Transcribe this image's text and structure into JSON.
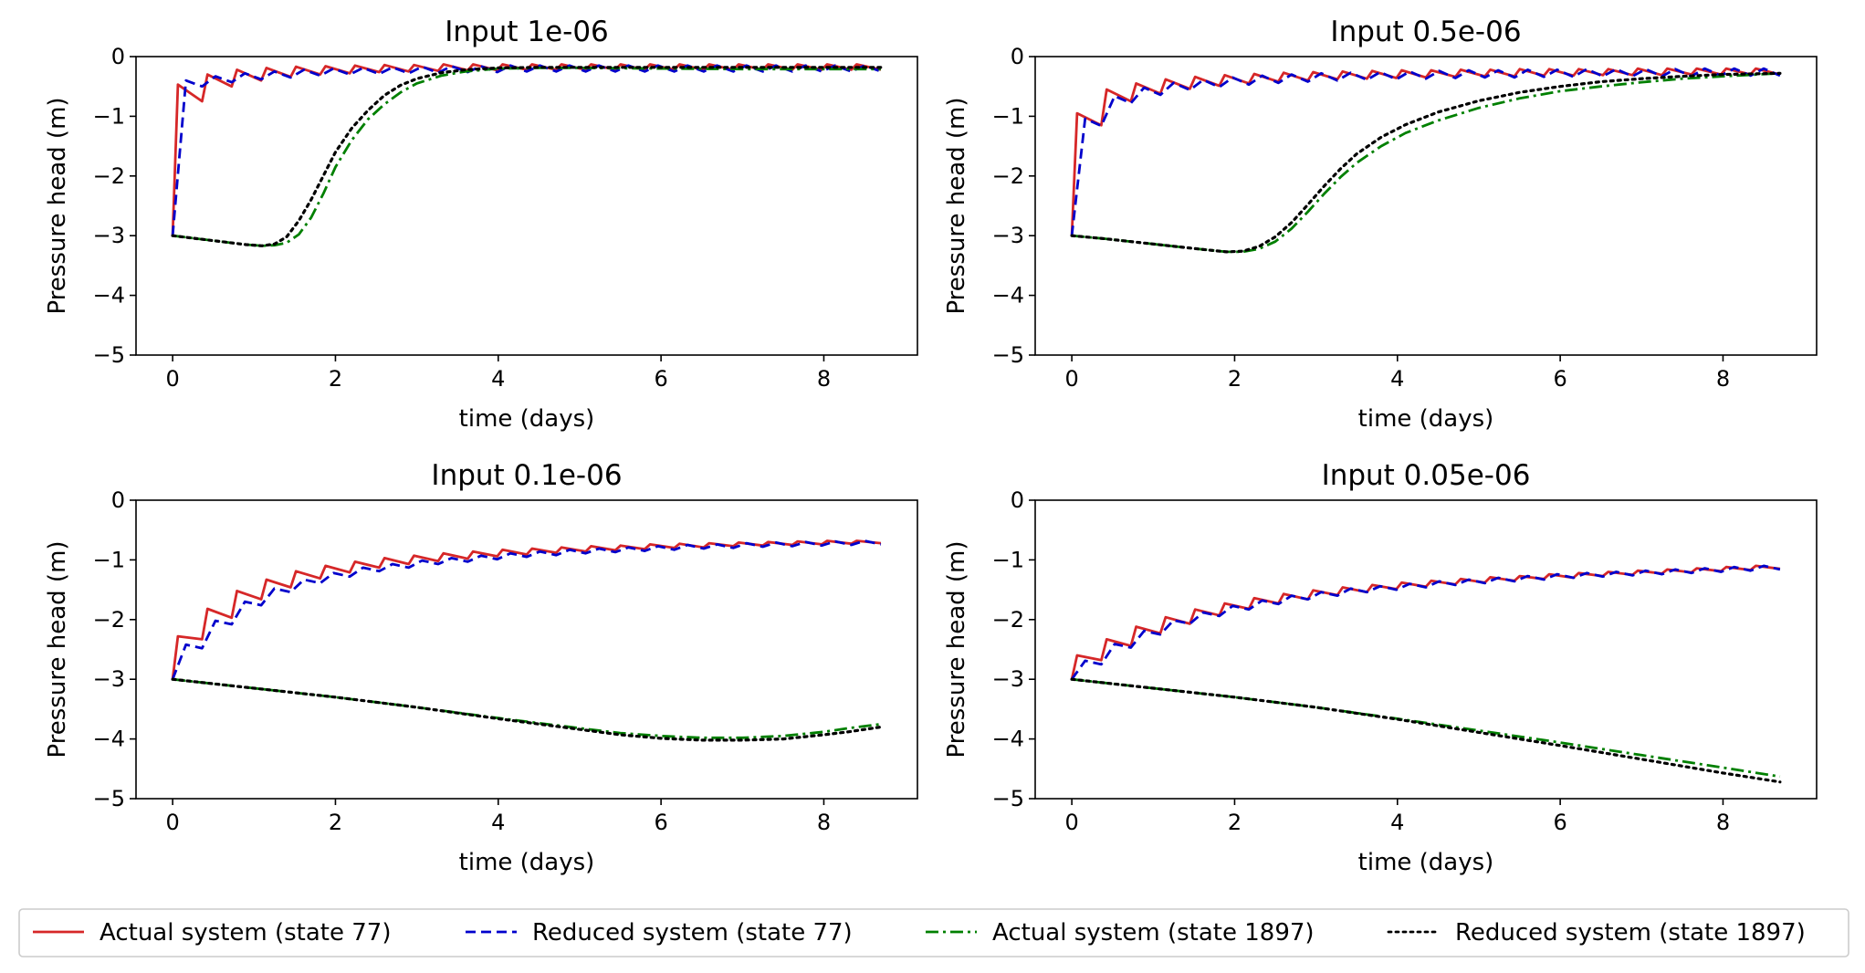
{
  "chart_data": {
    "type": "line",
    "xlabel": "time (days)",
    "ylabel": "Pressure head (m)",
    "xlim": [
      -0.45,
      9.15
    ],
    "ylim": [
      -5,
      0
    ],
    "xticks": [
      0,
      2,
      4,
      6,
      8
    ],
    "yticks": [
      0,
      -1,
      -2,
      -3,
      -4,
      -5
    ],
    "xtick_labels": [
      "0",
      "2",
      "4",
      "6",
      "8"
    ],
    "ytick_labels": [
      "0",
      "−1",
      "−2",
      "−3",
      "−4",
      "−5"
    ],
    "series_styles": [
      {
        "name": "Actual system (state 77)",
        "color": "#d62728",
        "dash": "solid"
      },
      {
        "name": "Reduced system (state 77)",
        "color": "#0000cc",
        "dash": "dashed"
      },
      {
        "name": "Actual system (state 1897)",
        "color": "#008000",
        "dash": "dashdot"
      },
      {
        "name": "Reduced system (state 1897)",
        "color": "#000000",
        "dash": "dotted"
      }
    ],
    "legend": {
      "placement": "bottom-center",
      "entries": [
        "Actual system (state 77)",
        "Reduced system (state 77)",
        "Actual system (state 1897)",
        "Reduced system (state 1897)"
      ]
    },
    "panels": [
      {
        "title": "Input 1e-06",
        "state77": {
          "kind": "sawtooth",
          "start": -3.0,
          "actual_peaks": [
            -0.47,
            -0.3,
            -0.22,
            -0.19,
            -0.17,
            -0.16,
            -0.15,
            -0.14,
            -0.14,
            -0.13,
            -0.13,
            -0.13,
            -0.13,
            -0.13,
            -0.13,
            -0.13,
            -0.13,
            -0.13,
            -0.13,
            -0.13,
            -0.13,
            -0.13,
            -0.13,
            -0.13
          ],
          "actual_troughs": [
            -0.75,
            -0.5,
            -0.4,
            -0.34,
            -0.3,
            -0.28,
            -0.26,
            -0.25,
            -0.24,
            -0.23,
            -0.23,
            -0.22,
            -0.22,
            -0.22,
            -0.22,
            -0.22,
            -0.22,
            -0.22,
            -0.22,
            -0.22,
            -0.22,
            -0.22,
            -0.22,
            -0.22
          ],
          "reduced": [
            -0.45,
            -0.38,
            -0.33,
            -0.3,
            -0.27,
            -0.25,
            -0.24,
            -0.23,
            -0.22,
            -0.21,
            -0.21,
            -0.2,
            -0.2,
            -0.2,
            -0.2,
            -0.2,
            -0.2,
            -0.2,
            -0.2,
            -0.2,
            -0.2,
            -0.2,
            -0.2,
            -0.2
          ],
          "reduced_amp": 0.05
        },
        "state1897": {
          "x": [
            0,
            0.3,
            0.6,
            0.9,
            1.1,
            1.25,
            1.4,
            1.55,
            1.7,
            1.85,
            2.0,
            2.2,
            2.4,
            2.6,
            2.8,
            3.0,
            3.3,
            3.6,
            4.0,
            4.5,
            5.0,
            6.0,
            7.0,
            8.0,
            8.7
          ],
          "actual": [
            -3.0,
            -3.05,
            -3.1,
            -3.15,
            -3.17,
            -3.16,
            -3.12,
            -2.98,
            -2.7,
            -2.3,
            -1.85,
            -1.4,
            -1.05,
            -0.8,
            -0.6,
            -0.45,
            -0.32,
            -0.25,
            -0.2,
            -0.19,
            -0.19,
            -0.2,
            -0.21,
            -0.21,
            -0.21
          ],
          "reduced": [
            -3.0,
            -3.05,
            -3.1,
            -3.15,
            -3.17,
            -3.14,
            -3.02,
            -2.75,
            -2.4,
            -2.0,
            -1.6,
            -1.2,
            -0.9,
            -0.65,
            -0.48,
            -0.37,
            -0.27,
            -0.22,
            -0.19,
            -0.18,
            -0.18,
            -0.18,
            -0.18,
            -0.18,
            -0.18
          ]
        }
      },
      {
        "title": "Input 0.5e-06",
        "state77": {
          "kind": "sawtooth",
          "start": -3.0,
          "actual_peaks": [
            -0.95,
            -0.55,
            -0.45,
            -0.38,
            -0.34,
            -0.31,
            -0.29,
            -0.27,
            -0.26,
            -0.25,
            -0.24,
            -0.23,
            -0.23,
            -0.22,
            -0.22,
            -0.21,
            -0.21,
            -0.21,
            -0.21,
            -0.2,
            -0.2,
            -0.2,
            -0.2,
            -0.2
          ],
          "actual_troughs": [
            -1.15,
            -0.75,
            -0.62,
            -0.54,
            -0.49,
            -0.45,
            -0.42,
            -0.4,
            -0.38,
            -0.37,
            -0.36,
            -0.35,
            -0.34,
            -0.33,
            -0.33,
            -0.32,
            -0.32,
            -0.31,
            -0.31,
            -0.31,
            -0.3,
            -0.3,
            -0.3,
            -0.3
          ],
          "reduced": [
            -1.1,
            -0.72,
            -0.58,
            -0.5,
            -0.45,
            -0.41,
            -0.38,
            -0.36,
            -0.34,
            -0.33,
            -0.32,
            -0.31,
            -0.3,
            -0.29,
            -0.29,
            -0.28,
            -0.28,
            -0.27,
            -0.27,
            -0.27,
            -0.27,
            -0.26,
            -0.26,
            -0.26
          ],
          "reduced_amp": 0.06
        },
        "state1897": {
          "x": [
            0,
            0.4,
            0.8,
            1.2,
            1.6,
            1.9,
            2.1,
            2.3,
            2.5,
            2.7,
            2.9,
            3.1,
            3.3,
            3.5,
            3.8,
            4.1,
            4.5,
            5.0,
            5.5,
            6.0,
            6.5,
            7.0,
            7.5,
            8.0,
            8.7
          ],
          "actual": [
            -3.0,
            -3.05,
            -3.11,
            -3.17,
            -3.23,
            -3.27,
            -3.27,
            -3.22,
            -3.1,
            -2.88,
            -2.6,
            -2.3,
            -2.02,
            -1.78,
            -1.5,
            -1.28,
            -1.07,
            -0.86,
            -0.7,
            -0.58,
            -0.5,
            -0.43,
            -0.37,
            -0.33,
            -0.28
          ],
          "reduced": [
            -3.0,
            -3.05,
            -3.11,
            -3.17,
            -3.23,
            -3.27,
            -3.26,
            -3.18,
            -3.02,
            -2.78,
            -2.48,
            -2.17,
            -1.88,
            -1.63,
            -1.35,
            -1.14,
            -0.93,
            -0.74,
            -0.6,
            -0.5,
            -0.42,
            -0.37,
            -0.33,
            -0.3,
            -0.28
          ]
        }
      },
      {
        "title": "Input 0.1e-06",
        "state77": {
          "kind": "sawtooth",
          "start": -3.0,
          "actual_peaks": [
            -2.28,
            -1.82,
            -1.52,
            -1.33,
            -1.19,
            -1.1,
            -1.03,
            -0.97,
            -0.93,
            -0.89,
            -0.86,
            -0.83,
            -0.81,
            -0.79,
            -0.77,
            -0.76,
            -0.74,
            -0.73,
            -0.72,
            -0.71,
            -0.7,
            -0.69,
            -0.68,
            -0.68
          ],
          "actual_troughs": [
            -2.33,
            -1.97,
            -1.66,
            -1.46,
            -1.31,
            -1.21,
            -1.13,
            -1.07,
            -1.02,
            -0.98,
            -0.94,
            -0.91,
            -0.88,
            -0.86,
            -0.84,
            -0.82,
            -0.8,
            -0.79,
            -0.77,
            -0.76,
            -0.75,
            -0.74,
            -0.73,
            -0.72
          ],
          "reduced": [
            -2.45,
            -2.05,
            -1.73,
            -1.51,
            -1.36,
            -1.25,
            -1.16,
            -1.1,
            -1.04,
            -1.0,
            -0.96,
            -0.92,
            -0.89,
            -0.86,
            -0.84,
            -0.82,
            -0.8,
            -0.78,
            -0.77,
            -0.75,
            -0.74,
            -0.73,
            -0.72,
            -0.71
          ],
          "reduced_amp": 0.03
        },
        "state1897": {
          "x": [
            0,
            1,
            2,
            3,
            4,
            5,
            5.5,
            6,
            6.5,
            7,
            7.5,
            8,
            8.3,
            8.7
          ],
          "actual": [
            -3.0,
            -3.15,
            -3.3,
            -3.47,
            -3.65,
            -3.82,
            -3.9,
            -3.95,
            -3.98,
            -3.98,
            -3.95,
            -3.88,
            -3.82,
            -3.75
          ],
          "reduced": [
            -3.0,
            -3.15,
            -3.3,
            -3.47,
            -3.66,
            -3.84,
            -3.93,
            -3.99,
            -4.02,
            -4.02,
            -4.0,
            -3.93,
            -3.88,
            -3.8
          ]
        }
      },
      {
        "title": "Input 0.05e-06",
        "state77": {
          "kind": "sawtooth",
          "start": -3.0,
          "actual_peaks": [
            -2.6,
            -2.33,
            -2.12,
            -1.96,
            -1.83,
            -1.73,
            -1.64,
            -1.57,
            -1.51,
            -1.46,
            -1.42,
            -1.38,
            -1.35,
            -1.32,
            -1.29,
            -1.27,
            -1.24,
            -1.22,
            -1.2,
            -1.18,
            -1.16,
            -1.14,
            -1.12,
            -1.1
          ],
          "actual_troughs": [
            -2.68,
            -2.44,
            -2.23,
            -2.07,
            -1.93,
            -1.82,
            -1.73,
            -1.66,
            -1.59,
            -1.54,
            -1.49,
            -1.45,
            -1.41,
            -1.38,
            -1.35,
            -1.32,
            -1.3,
            -1.27,
            -1.25,
            -1.23,
            -1.21,
            -1.19,
            -1.17,
            -1.15
          ],
          "reduced": [
            -2.72,
            -2.44,
            -2.22,
            -2.04,
            -1.91,
            -1.8,
            -1.71,
            -1.63,
            -1.57,
            -1.51,
            -1.47,
            -1.43,
            -1.39,
            -1.36,
            -1.33,
            -1.3,
            -1.27,
            -1.25,
            -1.23,
            -1.21,
            -1.19,
            -1.17,
            -1.15,
            -1.13
          ],
          "reduced_amp": 0.03
        },
        "state1897": {
          "x": [
            0,
            1,
            2,
            3,
            4,
            5,
            6,
            7,
            8,
            8.7
          ],
          "actual": [
            -3.0,
            -3.15,
            -3.3,
            -3.47,
            -3.66,
            -3.86,
            -4.06,
            -4.27,
            -4.48,
            -4.63
          ],
          "reduced": [
            -3.0,
            -3.15,
            -3.3,
            -3.47,
            -3.67,
            -3.89,
            -4.11,
            -4.34,
            -4.57,
            -4.72
          ]
        }
      }
    ]
  }
}
